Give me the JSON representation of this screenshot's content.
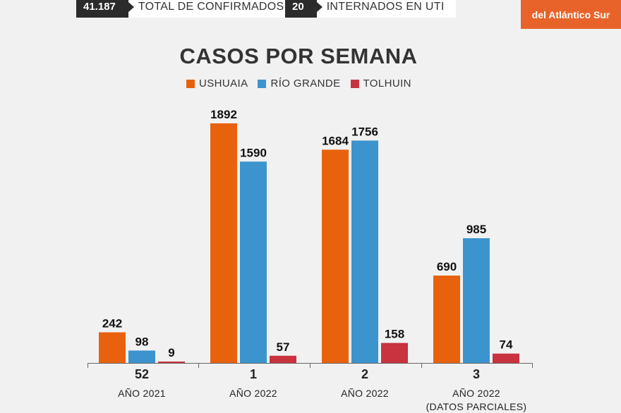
{
  "header": {
    "stats": [
      {
        "value": "41.187",
        "label": "TOTAL DE CONFIRMADOS"
      },
      {
        "value": "20",
        "label": "INTERNADOS EN UTI"
      }
    ],
    "brand": "del Atlántico Sur"
  },
  "colors": {
    "ushuaia": "#e8620d",
    "rio_grande": "#3c94ce",
    "tolhuin": "#c8333f"
  },
  "chart_data": {
    "type": "bar",
    "title": "CASOS POR SEMANA",
    "categories": [
      "52",
      "1",
      "2",
      "3"
    ],
    "category_sublabels": [
      "AÑO 2021",
      "AÑO 2022",
      "AÑO 2022",
      "AÑO 2022"
    ],
    "category_notes": [
      "",
      "",
      "",
      "(DATOS PARCIALES)"
    ],
    "series": [
      {
        "name": "USHUAIA",
        "values": [
          242,
          1892,
          1684,
          690
        ]
      },
      {
        "name": "RÍO GRANDE",
        "values": [
          98,
          1590,
          1756,
          985
        ]
      },
      {
        "name": "TOLHUIN",
        "values": [
          9,
          57,
          158,
          74
        ]
      }
    ],
    "ylim": [
      0,
      1892
    ],
    "legend": "top-center",
    "grid": false
  }
}
